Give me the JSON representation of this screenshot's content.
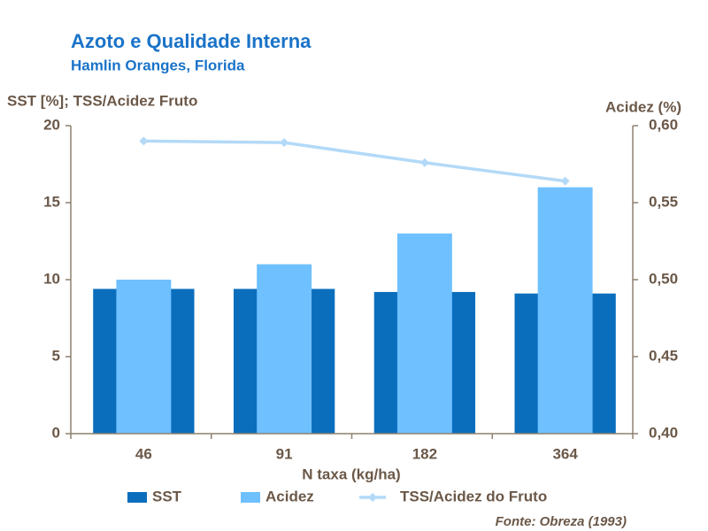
{
  "chart_data": {
    "type": "bar",
    "title": "Azoto e Qualidade Interna",
    "subtitle": "Hamlin Oranges, Florida",
    "y_label": "SST [%]; TSS/Acidez Fruto",
    "y2_label": "Acidez (%)",
    "x_label": "N taxa (kg/ha)",
    "source": "Fonte: Obreza (1993)",
    "categories": [
      "46",
      "91",
      "182",
      "364"
    ],
    "series": [
      {
        "name": "SST",
        "type": "bar",
        "color": "#0a6ebd",
        "values": [
          9.4,
          9.4,
          9.2,
          9.1
        ]
      },
      {
        "name": "Acidez",
        "type": "bar",
        "axis": "y2",
        "color": "#6ec0ff",
        "values": [
          0.5,
          0.51,
          0.53,
          0.56
        ]
      },
      {
        "name": "TSS/Acidez do Fruto",
        "type": "line",
        "color": "#b3d9f7",
        "values": [
          19.0,
          18.9,
          17.6,
          16.4
        ]
      }
    ],
    "ylim": [
      0,
      20
    ],
    "yticks": [
      0,
      5,
      10,
      15,
      20
    ],
    "y2lim": [
      0.4,
      0.6
    ],
    "y2ticks": [
      {
        "value": 0.4,
        "label": "0,40"
      },
      {
        "value": 0.45,
        "label": "0,45"
      },
      {
        "value": 0.5,
        "label": "0,50"
      },
      {
        "value": 0.55,
        "label": "0,55"
      },
      {
        "value": 0.6,
        "label": "0,60"
      }
    ],
    "legend": "bottom"
  }
}
